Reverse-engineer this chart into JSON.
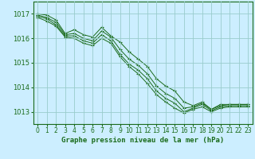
{
  "title": "Graphe pression niveau de la mer (hPa)",
  "bg_color": "#cceeff",
  "grid_color": "#99cccc",
  "line_color": "#1a6b1a",
  "marker_color": "#1a6b1a",
  "xlim": [
    -0.5,
    23.5
  ],
  "ylim": [
    1012.5,
    1017.5
  ],
  "yticks": [
    1013,
    1014,
    1015,
    1016,
    1017
  ],
  "xtick_labels": [
    "0",
    "1",
    "2",
    "3",
    "4",
    "5",
    "6",
    "7",
    "8",
    "9",
    "10",
    "11",
    "12",
    "13",
    "14",
    "15",
    "16",
    "17",
    "18",
    "19",
    "20",
    "21",
    "22",
    "23"
  ],
  "series": [
    [
      1017.0,
      1016.95,
      1016.75,
      1016.2,
      1016.35,
      1016.15,
      1016.05,
      1016.45,
      1016.1,
      1015.85,
      1015.45,
      1015.15,
      1014.85,
      1014.35,
      1014.05,
      1013.85,
      1013.4,
      1013.25,
      1013.4,
      1013.1,
      1013.3,
      1013.3,
      1013.3,
      1013.3
    ],
    [
      1016.95,
      1016.85,
      1016.65,
      1016.15,
      1016.2,
      1016.0,
      1015.9,
      1016.3,
      1016.05,
      1015.55,
      1015.15,
      1014.9,
      1014.55,
      1014.05,
      1013.75,
      1013.55,
      1013.15,
      1013.2,
      1013.35,
      1013.1,
      1013.25,
      1013.3,
      1013.3,
      1013.3
    ],
    [
      1016.9,
      1016.8,
      1016.55,
      1016.1,
      1016.1,
      1015.9,
      1015.8,
      1016.15,
      1015.9,
      1015.35,
      1014.95,
      1014.7,
      1014.35,
      1013.85,
      1013.55,
      1013.35,
      1013.0,
      1013.15,
      1013.3,
      1013.05,
      1013.2,
      1013.25,
      1013.25,
      1013.25
    ],
    [
      1016.85,
      1016.7,
      1016.5,
      1016.05,
      1016.0,
      1015.8,
      1015.7,
      1016.0,
      1015.8,
      1015.25,
      1014.85,
      1014.55,
      1014.15,
      1013.7,
      1013.4,
      1013.15,
      1012.95,
      1013.1,
      1013.2,
      1013.0,
      1013.15,
      1013.2,
      1013.2,
      1013.2
    ]
  ]
}
